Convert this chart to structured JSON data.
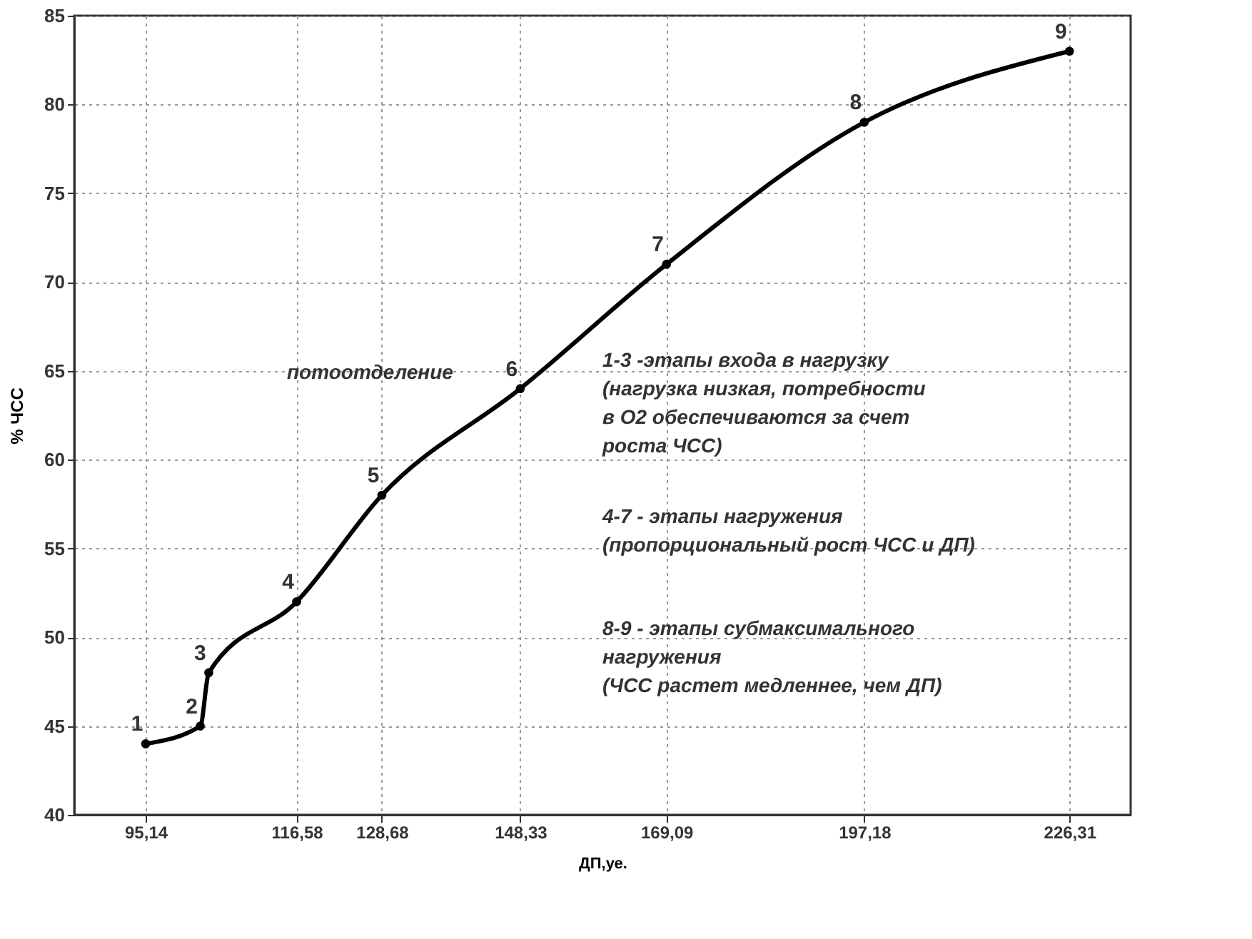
{
  "chart_data": {
    "type": "line",
    "xlabel": "ДП,уе.",
    "ylabel": "% ЧСС",
    "x": [
      95.14,
      102.9,
      104.1,
      116.58,
      128.68,
      148.33,
      169.09,
      197.18,
      226.31
    ],
    "series": [
      {
        "color": "#000000",
        "values": [
          44,
          45,
          48,
          52,
          58,
          64,
          71,
          79,
          83
        ]
      }
    ],
    "xlim": [
      85,
      235
    ],
    "ylim": [
      40,
      85
    ],
    "xticks": [
      {
        "value": 95.14,
        "label": "95,14"
      },
      {
        "value": 116.58,
        "label": "116,58"
      },
      {
        "value": 128.68,
        "label": "128,68"
      },
      {
        "value": 148.33,
        "label": "148,33"
      },
      {
        "value": 169.09,
        "label": "169,09"
      },
      {
        "value": 197.18,
        "label": "197,18"
      },
      {
        "value": 226.31,
        "label": "226,31"
      }
    ],
    "yticks": [
      40,
      45,
      50,
      55,
      60,
      65,
      70,
      75,
      80,
      85
    ],
    "grid": true,
    "marker": "circle",
    "line_style": "solid",
    "annotations": [
      {
        "text": "1",
        "x": 95.14,
        "y": 44
      },
      {
        "text": "2",
        "x": 102.9,
        "y": 45
      },
      {
        "text": "3",
        "x": 104.1,
        "y": 48
      },
      {
        "text": "4",
        "x": 116.58,
        "y": 52
      },
      {
        "text": "5",
        "x": 128.68,
        "y": 58
      },
      {
        "text": "6",
        "x": 148.33,
        "y": 64
      },
      {
        "text": "7",
        "x": 169.09,
        "y": 71
      },
      {
        "text": "8",
        "x": 197.18,
        "y": 79
      },
      {
        "text": "9",
        "x": 226.31,
        "y": 83
      },
      "потоотделение",
      "1-3 -этапы входа в нагрузку\n (нагрузка низкая, потребности\n в О2 обеспечиваются за счет\nроста ЧСС)",
      "4-7 - этапы нагружения\n (пропорциональный рост ЧСС и ДП)",
      "8-9 - этапы субмаксимального\nнагружения\n (ЧСС растет медленнее, чем ДП)"
    ]
  }
}
